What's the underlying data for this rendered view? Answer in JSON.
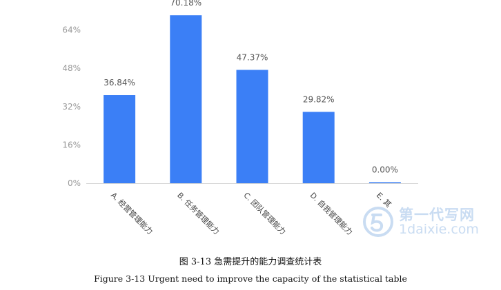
{
  "chart_data": {
    "type": "bar",
    "categories": [
      "A. 经营管理能力",
      "B. 任务管理能力",
      "C. 团队管理能力",
      "D. 自我管理能力",
      "E. 其"
    ],
    "values": [
      36.84,
      70.18,
      47.37,
      29.82,
      0.0
    ],
    "data_labels": [
      "36.84%",
      "70.18%",
      "47.37%",
      "29.82%",
      "0.00%"
    ],
    "y_ticks": [
      "0%",
      "16%",
      "32%",
      "48%",
      "64%"
    ],
    "y_tick_values": [
      0,
      16,
      32,
      48,
      64
    ],
    "ylim": [
      0,
      80
    ],
    "title": "",
    "xlabel": "",
    "ylabel": "",
    "grid": false,
    "bar_color": "#3b7ff6"
  },
  "caption": {
    "chinese": "图 3-13 急需提升的能力调查统计表",
    "english": "Figure 3-13 Urgent need to improve the capacity of the statistical table"
  },
  "watermark": {
    "name": "第一代写网",
    "url": "1daixie.com",
    "color": "#c9dcf2"
  }
}
